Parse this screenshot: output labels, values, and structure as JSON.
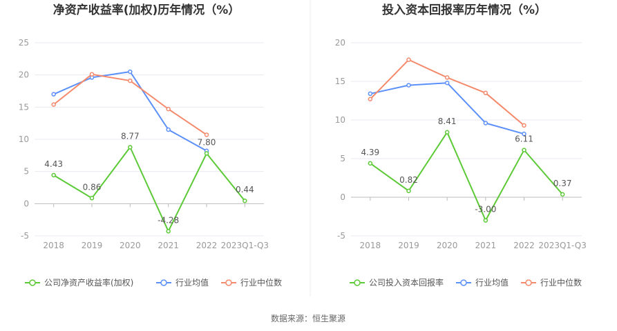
{
  "colors": {
    "company": "#5CC936",
    "average": "#5B8FF9",
    "median": "#F4896B",
    "grid": "#E8E8F0",
    "axis": "#BBBBBB",
    "divider": "#EEEEEE"
  },
  "chart_data": [
    {
      "type": "line",
      "title": "净资产收益率(加权)历年情况（%）",
      "categories": [
        "2018",
        "2019",
        "2020",
        "2021",
        "2022",
        "2023Q1-Q3"
      ],
      "ylim": [
        -5,
        25
      ],
      "yticks": [
        -5,
        0,
        5,
        10,
        15,
        20,
        25
      ],
      "series": [
        {
          "name": "公司净资产收益率(加权)",
          "key": "company",
          "values": [
            4.43,
            0.86,
            8.77,
            -4.28,
            7.8,
            0.44
          ],
          "labeled": true
        },
        {
          "name": "行业均值",
          "key": "average",
          "values": [
            17.0,
            19.6,
            20.5,
            11.5,
            8.2,
            null
          ],
          "labeled": false
        },
        {
          "name": "行业中位数",
          "key": "median",
          "values": [
            15.4,
            20.1,
            19.1,
            14.7,
            10.7,
            null
          ],
          "labeled": false
        }
      ],
      "labels": [
        "4.43",
        "0.86",
        "8.77",
        "-4.28",
        "7.80",
        "0.44"
      ]
    },
    {
      "type": "line",
      "title": "投入资本回报率历年情况（%）",
      "categories": [
        "2018",
        "2019",
        "2020",
        "2021",
        "2022",
        "2023Q1-Q3"
      ],
      "ylim": [
        -5,
        20
      ],
      "yticks": [
        -5,
        0,
        5,
        10,
        15,
        20
      ],
      "series": [
        {
          "name": "公司投入资本回报率",
          "key": "company",
          "values": [
            4.39,
            0.82,
            8.41,
            -3.0,
            6.11,
            0.37
          ],
          "labeled": true
        },
        {
          "name": "行业均值",
          "key": "average",
          "values": [
            13.4,
            14.5,
            14.8,
            9.6,
            8.2,
            null
          ],
          "labeled": false
        },
        {
          "name": "行业中位数",
          "key": "median",
          "values": [
            12.7,
            17.8,
            15.5,
            13.5,
            9.3,
            null
          ],
          "labeled": false
        }
      ],
      "labels": [
        "4.39",
        "0.82",
        "8.41",
        "-3.00",
        "6.11",
        "0.37"
      ]
    }
  ],
  "source": "数据来源：恒生聚源"
}
